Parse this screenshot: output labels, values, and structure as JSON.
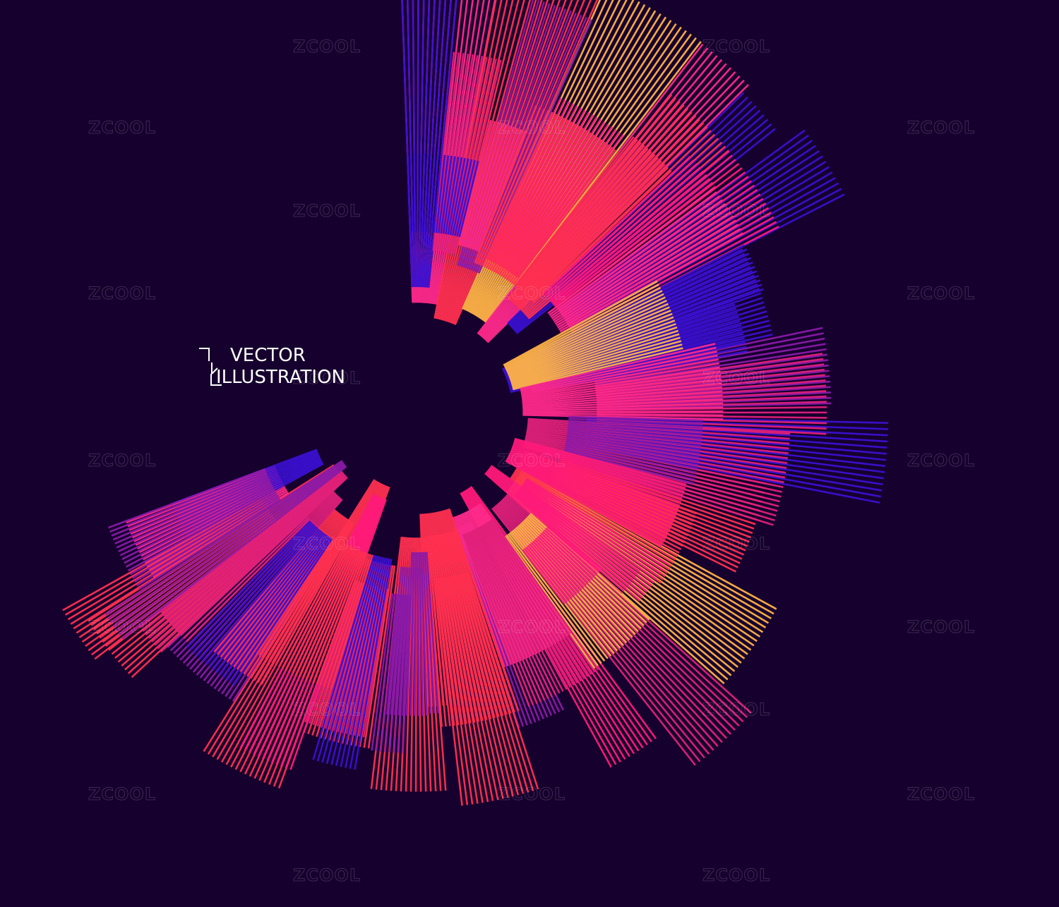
{
  "title": {
    "line1": "VECTOR",
    "line2": "ILLUSTRATION"
  },
  "watermark": "ZCOOL"
}
